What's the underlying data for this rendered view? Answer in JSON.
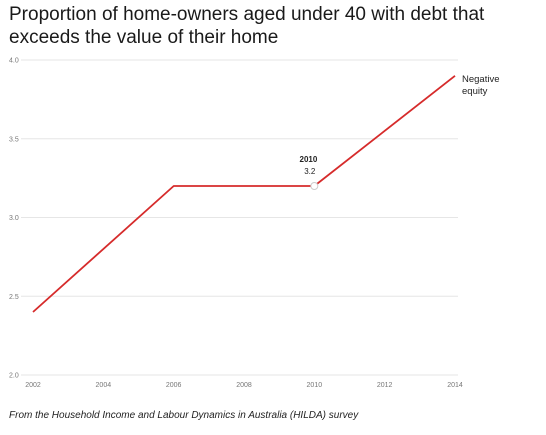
{
  "chart_data": {
    "type": "line",
    "title": "Proportion of home-owners aged under 40 with debt that exceeds the value of their home",
    "xlabel": "",
    "ylabel": "",
    "x_ticks": [
      "2002",
      "2004",
      "2006",
      "2008",
      "2010",
      "2012",
      "2014"
    ],
    "y_ticks": [
      "2.0",
      "2.5",
      "3.0",
      "3.5",
      "4.0"
    ],
    "xlim": [
      2002,
      2014
    ],
    "ylim": [
      2.0,
      4.0
    ],
    "grid": true,
    "series": [
      {
        "name": "Negative equity",
        "color": "#d62b2b",
        "x": [
          2002,
          2006,
          2010,
          2014
        ],
        "y": [
          2.4,
          3.2,
          3.2,
          3.9
        ]
      }
    ],
    "highlight": {
      "x_label": "2010",
      "y_label": "3.2",
      "x": 2010,
      "y": 3.2
    },
    "source": "From the Household Income and Labour Dynamics in Australia (HILDA) survey"
  }
}
